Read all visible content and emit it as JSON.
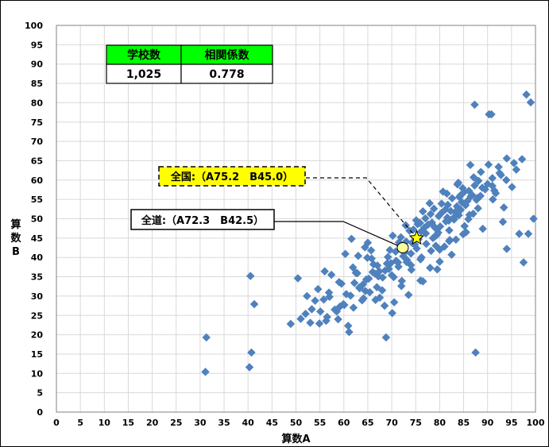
{
  "chart_data": {
    "type": "scatter",
    "xlabel": "算数A",
    "ylabel": "算数B",
    "xlim": [
      0,
      100
    ],
    "ylim": [
      0,
      100
    ],
    "xticks": [
      0,
      5,
      10,
      15,
      20,
      25,
      30,
      35,
      40,
      45,
      50,
      55,
      60,
      65,
      70,
      75,
      80,
      85,
      90,
      95,
      100
    ],
    "yticks": [
      0,
      5,
      10,
      15,
      20,
      25,
      30,
      35,
      40,
      45,
      50,
      55,
      60,
      65,
      70,
      75,
      80,
      85,
      90,
      95,
      100
    ],
    "grid": true,
    "stats_table": {
      "headers": [
        "学校数",
        "相関係数"
      ],
      "values": [
        "1,025",
        "0.778"
      ]
    },
    "annotations": [
      {
        "label": "全国:（A75.2　B45.0）",
        "x": 75.2,
        "y": 45.0,
        "marker": "star"
      },
      {
        "label": "全道:（A72.3　B42.5）",
        "x": 72.3,
        "y": 42.5,
        "marker": "circle"
      }
    ],
    "series": [
      {
        "marker": "diamond",
        "x": [
          31.3,
          31.1,
          40.5,
          40.7,
          40.3,
          41.3,
          48.9,
          50.4,
          51.0,
          52.3,
          53.0,
          54.0,
          55.1,
          56.0,
          56.9,
          58.1,
          59.0,
          60.1,
          60.9,
          61.9,
          63.2,
          64.1,
          65.0,
          67.2,
          68.8,
          70.1,
          71.3,
          72.1,
          73.0,
          74.1,
          75.2,
          76.0,
          77.1,
          78.2,
          79.1,
          80.0,
          81.2,
          82.1,
          83.0,
          84.1,
          85.2,
          86.1,
          87.0,
          88.1,
          89.0,
          90.2,
          91.1,
          92.3,
          93.2,
          94.0,
          95.1,
          96.0,
          97.2,
          98.1,
          99.0,
          99.6,
          96.6,
          87.3,
          87.5,
          90.3,
          90.8,
          97.5,
          98.5,
          94.0,
          93.4,
          91.7,
          91.0,
          88.6,
          86.5,
          83.7,
          81.7,
          80.4,
          78.4,
          76.1,
          74.4,
          72.6,
          70.9,
          69.4,
          68.1,
          66.9,
          65.4,
          63.8,
          62.2,
          60.5,
          59.2,
          57.4,
          55.8,
          54.6,
          53.3,
          52.0,
          63.0,
          66.2,
          69.6,
          71.9,
          74.8,
          77.6,
          79.8,
          82.3,
          84.6,
          86.8,
          60.3,
          62.5,
          64.7,
          67.0,
          69.2,
          71.5,
          73.7,
          75.9,
          78.1,
          80.4,
          82.6,
          84.8,
          87.1,
          61.6,
          65.8,
          70.2,
          74.5,
          78.8,
          83.0,
          87.3,
          64.4,
          68.6,
          72.9,
          77.2,
          81.5,
          85.8,
          66.5,
          70.8,
          75.1,
          79.4,
          83.6,
          76.5,
          78.9,
          81.3,
          73.2,
          75.6,
          79.2,
          82.0,
          84.4,
          71.4,
          74.0,
          77.0,
          80.1,
          83.2,
          85.4,
          69.0,
          71.8,
          76.2,
          79.7,
          81.9,
          64.0,
          66.0,
          68.0,
          70.0,
          72.0,
          74.0,
          76.0,
          78.0,
          80.0,
          82.0,
          84.0,
          86.0,
          88.0,
          57.0,
          59.5,
          62.0,
          64.5,
          67.5,
          70.5,
          73.5,
          76.5,
          79.5,
          82.5,
          85.5,
          88.5,
          91.0,
          92.5,
          89.5,
          87.7,
          86.2,
          84.9,
          83.4,
          81.0,
          78.6,
          76.8,
          74.3,
          72.4,
          69.8,
          67.4,
          65.2,
          63.3,
          61.4,
          59.9,
          58.5,
          56.5,
          54.9,
          68.5,
          66.6,
          64.9,
          72.8,
          75.4,
          77.9,
          80.7,
          83.9,
          85.1,
          86.4,
          88.9,
          90.0,
          91.4,
          92.8,
          93.9,
          95.5,
          70.4,
          73.1,
          79.0,
          81.6,
          84.3,
          87.9,
          62.8,
          65.7,
          58.8,
          61.1,
          56.3
        ],
        "y": [
          19.3,
          10.4,
          35.2,
          15.4,
          11.6,
          27.9,
          22.8,
          34.6,
          24.1,
          30.0,
          23.1,
          28.8,
          26.0,
          36.4,
          30.9,
          26.5,
          33.6,
          27.7,
          22.3,
          37.4,
          32.2,
          29.4,
          43.8,
          35.1,
          19.3,
          25.6,
          38.7,
          33.9,
          44.1,
          36.8,
          42.3,
          39.5,
          46.2,
          41.7,
          47.6,
          38.9,
          52.4,
          44.5,
          49.8,
          55.6,
          48.1,
          57.2,
          51.3,
          59.8,
          47.4,
          64.0,
          55.0,
          63.4,
          49.2,
          65.6,
          58.2,
          62.7,
          65.4,
          82.1,
          80.1,
          50.0,
          46.1,
          79.5,
          15.4,
          77.0,
          77.0,
          38.7,
          46.1,
          42.2,
          52.9,
          56.6,
          60.5,
          62.1,
          55.8,
          58.9,
          53.6,
          51.5,
          49.0,
          46.7,
          44.0,
          41.2,
          39.1,
          37.0,
          34.8,
          32.3,
          31.0,
          28.9,
          33.4,
          30.5,
          27.3,
          35.5,
          29.1,
          31.8,
          26.6,
          25.4,
          40.4,
          38.2,
          41.9,
          45.2,
          43.3,
          48.5,
          50.7,
          52.0,
          54.3,
          56.1,
          40.9,
          36.0,
          34.3,
          37.9,
          40.1,
          43.9,
          46.9,
          48.9,
          51.2,
          53.9,
          55.3,
          57.9,
          60.7,
          44.8,
          39.7,
          45.6,
          47.2,
          52.6,
          50.4,
          58.6,
          42.6,
          36.6,
          48.3,
          43.5,
          56.5,
          54.6,
          35.8,
          41.5,
          49.6,
          45.8,
          53.2,
          51.9,
          47.9,
          49.3,
          39.3,
          44.7,
          43.0,
          47.0,
          52.3,
          37.6,
          41.0,
          50.1,
          48.0,
          51.7,
          53.5,
          38.4,
          42.9,
          40.0,
          46.4,
          49.5,
          33.0,
          36.2,
          31.5,
          35.4,
          32.6,
          38.0,
          34.0,
          37.3,
          42.0,
          44.2,
          50.9,
          49.9,
          52.7,
          29.8,
          33.2,
          27.0,
          31.3,
          29.6,
          28.4,
          30.3,
          33.8,
          36.9,
          40.7,
          46.5,
          55.9,
          58.5,
          61.8,
          57.6,
          54.9,
          51.0,
          46.0,
          44.6,
          42.8,
          45.0,
          47.7,
          43.7,
          40.3,
          38.5,
          36.4,
          34.5,
          32.0,
          30.1,
          27.9,
          26.0,
          24.6,
          22.9,
          27.5,
          29.0,
          39.9,
          41.4,
          48.6,
          54.0,
          57.0,
          59.3,
          56.9,
          63.9,
          58.0,
          59.0,
          57.3,
          61.3,
          60.0,
          64.4,
          34.9,
          38.8,
          45.4,
          50.3,
          56.0,
          55.4,
          35.9,
          41.8,
          24.0,
          20.7,
          23.6
        ]
      }
    ]
  }
}
